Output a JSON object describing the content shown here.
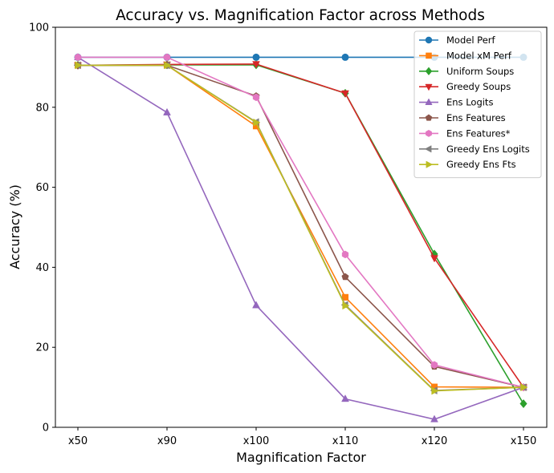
{
  "chart_data": {
    "type": "line",
    "title": "Accuracy vs. Magnification Factor across Methods",
    "xlabel": "Magnification Factor",
    "ylabel": "Accuracy (%)",
    "categories": [
      "x50",
      "x90",
      "x100",
      "x110",
      "x120",
      "x150"
    ],
    "ylim": [
      0,
      100
    ],
    "yticks": [
      "0",
      "20",
      "40",
      "60",
      "80",
      "100"
    ],
    "grid": false,
    "legend_position": "top-right",
    "series": [
      {
        "name": "Model Perf",
        "color": "#1f77b4",
        "marker": "circle",
        "values": [
          92.5,
          92.5,
          92.5,
          92.5,
          92.5,
          92.5
        ]
      },
      {
        "name": "Model xM Perf",
        "color": "#ff7f0e",
        "marker": "square",
        "values": [
          90.5,
          90.5,
          75.3,
          32.5,
          10.1,
          10.0
        ]
      },
      {
        "name": "Uniform Soups",
        "color": "#2ca02c",
        "marker": "diamond",
        "values": [
          90.5,
          90.6,
          90.6,
          83.5,
          43.3,
          5.9
        ]
      },
      {
        "name": "Greedy Soups",
        "color": "#d62728",
        "marker": "triangle-down",
        "values": [
          90.5,
          90.7,
          90.8,
          83.5,
          42.3,
          10.0
        ]
      },
      {
        "name": "Ens Logits",
        "color": "#9467bd",
        "marker": "triangle-up",
        "values": [
          92.5,
          78.7,
          30.5,
          7.1,
          2.0,
          10.0
        ]
      },
      {
        "name": "Ens Features",
        "color": "#8c564b",
        "marker": "pentagon",
        "values": [
          90.5,
          90.5,
          82.8,
          37.6,
          15.2,
          10.0
        ]
      },
      {
        "name": "Ens Features*",
        "color": "#e377c2",
        "marker": "hexagon",
        "values": [
          92.5,
          92.5,
          82.5,
          43.2,
          15.6,
          10.0
        ]
      },
      {
        "name": "Greedy Ens Logits",
        "color": "#7f7f7f",
        "marker": "triangle-left",
        "values": [
          90.5,
          90.5,
          76.3,
          30.6,
          9.2,
          10.0
        ]
      },
      {
        "name": "Greedy Ens Fts",
        "color": "#bcbd22",
        "marker": "triangle-right",
        "values": [
          90.5,
          90.5,
          76.2,
          30.4,
          9.1,
          10.0
        ]
      }
    ]
  }
}
